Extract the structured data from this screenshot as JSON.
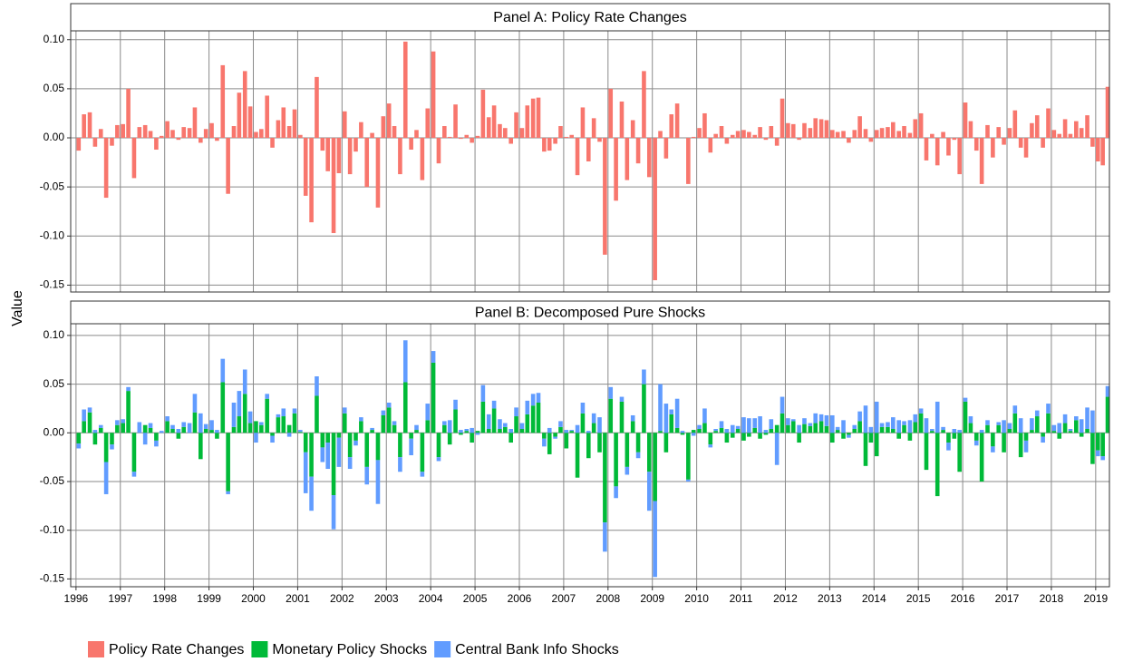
{
  "chart_data": [
    {
      "type": "bar",
      "title": "Panel A: Policy Rate Changes",
      "y_label": "Value",
      "x": [
        1996.06,
        1996.18,
        1996.31,
        1996.43,
        1996.56,
        1996.68,
        1996.81,
        1996.93,
        1997.06,
        1997.18,
        1997.31,
        1997.43,
        1997.56,
        1997.68,
        1997.81,
        1997.93,
        1998.06,
        1998.18,
        1998.31,
        1998.43,
        1998.56,
        1998.68,
        1998.81,
        1998.93,
        1999.06,
        1999.18,
        1999.31,
        1999.43,
        1999.56,
        1999.68,
        1999.81,
        1999.93,
        2000.06,
        2000.18,
        2000.31,
        2000.43,
        2000.56,
        2000.68,
        2000.81,
        2000.93,
        2001.06,
        2001.18,
        2001.31,
        2001.43,
        2001.56,
        2001.68,
        2001.81,
        2001.93,
        2002.06,
        2002.18,
        2002.31,
        2002.43,
        2002.56,
        2002.68,
        2002.81,
        2002.93,
        2003.06,
        2003.18,
        2003.31,
        2003.43,
        2003.56,
        2003.68,
        2003.81,
        2003.93,
        2004.06,
        2004.18,
        2004.31,
        2004.43,
        2004.56,
        2004.68,
        2004.81,
        2004.93,
        2005.06,
        2005.18,
        2005.31,
        2005.43,
        2005.56,
        2005.68,
        2005.81,
        2005.93,
        2006.06,
        2006.18,
        2006.31,
        2006.43,
        2006.56,
        2006.68,
        2006.81,
        2006.93,
        2007.06,
        2007.18,
        2007.31,
        2007.43,
        2007.56,
        2007.68,
        2007.81,
        2007.93,
        2008.06,
        2008.18,
        2008.31,
        2008.43,
        2008.56,
        2008.68,
        2008.81,
        2008.93,
        2009.06,
        2009.18,
        2009.31,
        2009.43,
        2009.56,
        2009.68,
        2009.81,
        2009.93,
        2010.06,
        2010.18,
        2010.31,
        2010.43,
        2010.56,
        2010.68,
        2010.81,
        2010.93,
        2011.06,
        2011.18,
        2011.31,
        2011.43,
        2011.56,
        2011.68,
        2011.81,
        2011.93,
        2012.06,
        2012.18,
        2012.31,
        2012.43,
        2012.56,
        2012.68,
        2012.81,
        2012.93,
        2013.06,
        2013.18,
        2013.31,
        2013.43,
        2013.56,
        2013.68,
        2013.81,
        2013.93,
        2014.06,
        2014.18,
        2014.31,
        2014.43,
        2014.56,
        2014.68,
        2014.81,
        2014.93,
        2015.06,
        2015.18,
        2015.31,
        2015.43,
        2015.56,
        2015.68,
        2015.81,
        2015.93,
        2016.06,
        2016.18,
        2016.31,
        2016.43,
        2016.56,
        2016.68,
        2016.81,
        2016.93,
        2017.06,
        2017.18,
        2017.31,
        2017.43,
        2017.56,
        2017.68,
        2017.81,
        2017.93,
        2018.06,
        2018.18,
        2018.31,
        2018.43,
        2018.56,
        2018.68,
        2018.81,
        2018.93,
        2019.05,
        2019.16,
        2019.27
      ],
      "series": [
        {
          "name": "Policy Rate Changes",
          "color": "#F8766D",
          "values": [
            -0.013,
            0.024,
            0.026,
            -0.009,
            0.009,
            -0.061,
            -0.008,
            0.013,
            0.014,
            0.05,
            -0.041,
            0.011,
            0.013,
            0.007,
            -0.012,
            0.002,
            0.017,
            0.008,
            -0.002,
            0.011,
            0.01,
            0.031,
            -0.005,
            0.009,
            0.015,
            -0.003,
            0.074,
            -0.057,
            0.012,
            0.046,
            0.068,
            0.032,
            0.006,
            0.009,
            0.043,
            -0.01,
            0.018,
            0.031,
            0.012,
            0.029,
            0.003,
            -0.059,
            -0.086,
            0.062,
            -0.013,
            -0.034,
            -0.097,
            -0.036,
            0.027,
            -0.037,
            -0.014,
            0.016,
            -0.05,
            0.005,
            -0.071,
            0.022,
            0.035,
            0.012,
            -0.037,
            0.098,
            -0.012,
            0.008,
            -0.043,
            0.03,
            0.088,
            -0.026,
            0.012,
            0.001,
            0.034,
            -0.001,
            0.003,
            -0.005,
            0.002,
            0.049,
            0.021,
            0.033,
            0.014,
            0.01,
            -0.006,
            0.026,
            0.01,
            0.033,
            0.04,
            0.041,
            -0.014,
            -0.013,
            -0.006,
            0.012,
            0.001,
            0.003,
            -0.038,
            0.031,
            -0.024,
            0.02,
            -0.004,
            -0.119,
            0.05,
            -0.064,
            0.037,
            -0.043,
            0.018,
            -0.026,
            0.068,
            -0.04,
            -0.145,
            0.007,
            -0.021,
            0.024,
            0.035,
            0.0,
            -0.047,
            0.001,
            0.01,
            0.025,
            -0.015,
            0.004,
            0.012,
            -0.006,
            0.003,
            0.007,
            0.008,
            0.006,
            0.003,
            0.011,
            -0.002,
            0.012,
            -0.008,
            0.04,
            0.015,
            0.014,
            -0.002,
            0.015,
            0.01,
            0.02,
            0.019,
            0.018,
            0.008,
            0.006,
            0.007,
            -0.005,
            0.008,
            0.022,
            0.009,
            -0.004,
            0.008,
            0.01,
            0.011,
            0.016,
            0.007,
            0.012,
            0.005,
            0.019,
            0.025,
            -0.023,
            0.004,
            -0.028,
            0.006,
            -0.018,
            -0.002,
            -0.037,
            0.036,
            0.017,
            -0.013,
            -0.047,
            0.013,
            -0.02,
            0.011,
            -0.007,
            0.01,
            0.028,
            -0.01,
            -0.02,
            0.015,
            0.023,
            -0.01,
            0.03,
            0.008,
            0.004,
            0.019,
            0.004,
            0.017,
            0.01,
            0.023,
            -0.009,
            -0.024,
            -0.028,
            0.052
          ]
        }
      ],
      "xlim": [
        1995.88,
        2019.31
      ],
      "xticks": [
        1996,
        1997,
        1998,
        1999,
        2000,
        2001,
        2002,
        2003,
        2004,
        2005,
        2006,
        2007,
        2008,
        2009,
        2010,
        2011,
        2012,
        2013,
        2014,
        2015,
        2016,
        2017,
        2018,
        2019
      ],
      "ylim": [
        -0.157,
        0.109
      ],
      "yticks": [
        -0.15,
        {
          "value": -0.1,
          "label": "-0.10"
        },
        -0.05,
        {
          "value": 0,
          "label": "0.00"
        },
        0.05,
        {
          "value": 0.1,
          "label": "0.10"
        }
      ],
      "grid": true
    },
    {
      "type": "stacked_bar",
      "title": "Panel B: Decomposed Pure Shocks",
      "x": [
        1996.06,
        1996.18,
        1996.31,
        1996.43,
        1996.56,
        1996.68,
        1996.81,
        1996.93,
        1997.06,
        1997.18,
        1997.31,
        1997.43,
        1997.56,
        1997.68,
        1997.81,
        1997.93,
        1998.06,
        1998.18,
        1998.31,
        1998.43,
        1998.56,
        1998.68,
        1998.81,
        1998.93,
        1999.06,
        1999.18,
        1999.31,
        1999.43,
        1999.56,
        1999.68,
        1999.81,
        1999.93,
        2000.06,
        2000.18,
        2000.31,
        2000.43,
        2000.56,
        2000.68,
        2000.81,
        2000.93,
        2001.06,
        2001.18,
        2001.31,
        2001.43,
        2001.56,
        2001.68,
        2001.81,
        2001.93,
        2002.06,
        2002.18,
        2002.31,
        2002.43,
        2002.56,
        2002.68,
        2002.81,
        2002.93,
        2003.06,
        2003.18,
        2003.31,
        2003.43,
        2003.56,
        2003.68,
        2003.81,
        2003.93,
        2004.06,
        2004.18,
        2004.31,
        2004.43,
        2004.56,
        2004.68,
        2004.81,
        2004.93,
        2005.06,
        2005.18,
        2005.31,
        2005.43,
        2005.56,
        2005.68,
        2005.81,
        2005.93,
        2006.06,
        2006.18,
        2006.31,
        2006.43,
        2006.56,
        2006.68,
        2006.81,
        2006.93,
        2007.06,
        2007.18,
        2007.31,
        2007.43,
        2007.56,
        2007.68,
        2007.81,
        2007.93,
        2008.06,
        2008.18,
        2008.31,
        2008.43,
        2008.56,
        2008.68,
        2008.81,
        2008.93,
        2009.06,
        2009.18,
        2009.31,
        2009.43,
        2009.56,
        2009.68,
        2009.81,
        2009.93,
        2010.06,
        2010.18,
        2010.31,
        2010.43,
        2010.56,
        2010.68,
        2010.81,
        2010.93,
        2011.06,
        2011.18,
        2011.31,
        2011.43,
        2011.56,
        2011.68,
        2011.81,
        2011.93,
        2012.06,
        2012.18,
        2012.31,
        2012.43,
        2012.56,
        2012.68,
        2012.81,
        2012.93,
        2013.06,
        2013.18,
        2013.31,
        2013.43,
        2013.56,
        2013.68,
        2013.81,
        2013.93,
        2014.06,
        2014.18,
        2014.31,
        2014.43,
        2014.56,
        2014.68,
        2014.81,
        2014.93,
        2015.06,
        2015.18,
        2015.31,
        2015.43,
        2015.56,
        2015.68,
        2015.81,
        2015.93,
        2016.06,
        2016.18,
        2016.31,
        2016.43,
        2016.56,
        2016.68,
        2016.81,
        2016.93,
        2017.06,
        2017.18,
        2017.31,
        2017.43,
        2017.56,
        2017.68,
        2017.81,
        2017.93,
        2018.06,
        2018.18,
        2018.31,
        2018.43,
        2018.56,
        2018.68,
        2018.81,
        2018.93,
        2019.05,
        2019.16,
        2019.27
      ],
      "series": [
        {
          "name": "Monetary Policy Shocks",
          "color": "#00BA38",
          "values": [
            -0.011,
            0.012,
            0.021,
            -0.012,
            0.005,
            -0.03,
            -0.012,
            0.008,
            0.01,
            0.043,
            -0.04,
            0.0,
            0.008,
            0.005,
            -0.008,
            0.0,
            0.012,
            0.004,
            -0.006,
            0.006,
            0.0,
            0.021,
            -0.027,
            0.004,
            0.003,
            -0.006,
            0.052,
            -0.06,
            0.006,
            0.017,
            0.04,
            0.01,
            0.012,
            0.008,
            0.035,
            -0.003,
            0.016,
            0.017,
            0.008,
            0.02,
            0.001,
            -0.02,
            -0.045,
            0.038,
            -0.015,
            -0.01,
            -0.064,
            -0.005,
            0.02,
            -0.025,
            -0.008,
            0.012,
            -0.035,
            0.003,
            -0.028,
            0.018,
            0.026,
            0.008,
            -0.025,
            0.052,
            -0.006,
            0.003,
            -0.04,
            0.013,
            0.072,
            -0.025,
            0.008,
            -0.012,
            0.024,
            -0.002,
            0.002,
            -0.01,
            0.002,
            0.032,
            0.004,
            0.025,
            0.004,
            0.006,
            -0.01,
            0.017,
            0.004,
            0.019,
            0.028,
            0.031,
            -0.006,
            -0.022,
            -0.004,
            0.006,
            -0.016,
            0.002,
            -0.046,
            0.02,
            -0.026,
            0.01,
            -0.02,
            -0.092,
            0.035,
            -0.055,
            0.032,
            -0.035,
            0.012,
            -0.02,
            0.05,
            -0.04,
            -0.07,
            0.002,
            -0.02,
            0.019,
            0.005,
            -0.002,
            -0.048,
            0.003,
            0.004,
            0.01,
            -0.012,
            0.002,
            0.005,
            -0.01,
            -0.005,
            0.004,
            -0.008,
            -0.004,
            0.005,
            -0.006,
            -0.002,
            0.004,
            0.008,
            0.02,
            0.008,
            0.012,
            -0.01,
            0.009,
            0.007,
            0.01,
            0.012,
            0.007,
            -0.01,
            0.003,
            -0.006,
            -0.002,
            0.004,
            0.012,
            -0.034,
            -0.01,
            -0.024,
            0.006,
            0.006,
            0.004,
            -0.006,
            0.008,
            -0.008,
            0.011,
            0.02,
            -0.038,
            0.002,
            -0.065,
            0.003,
            -0.01,
            -0.006,
            -0.04,
            0.032,
            0.01,
            -0.008,
            -0.05,
            0.008,
            -0.014,
            0.008,
            -0.02,
            0.004,
            0.02,
            -0.025,
            -0.008,
            0.003,
            0.017,
            -0.004,
            0.02,
            0.002,
            -0.006,
            0.01,
            0.002,
            0.013,
            -0.004,
            0.004,
            -0.032,
            -0.018,
            -0.024,
            0.037
          ]
        },
        {
          "name": "Central Bank Info Shocks",
          "color": "#619CFF",
          "values": [
            -0.005,
            0.012,
            0.005,
            0.003,
            0.003,
            -0.033,
            -0.005,
            0.005,
            0.004,
            0.004,
            -0.005,
            0.011,
            -0.012,
            0.005,
            -0.006,
            0.002,
            0.005,
            0.004,
            0.004,
            0.005,
            0.01,
            0.019,
            0.02,
            0.005,
            0.01,
            0.003,
            0.024,
            -0.003,
            0.025,
            0.026,
            0.025,
            0.012,
            -0.01,
            0.003,
            0.005,
            -0.007,
            0.003,
            0.008,
            -0.004,
            0.005,
            0.002,
            -0.042,
            -0.035,
            0.02,
            -0.015,
            -0.027,
            -0.035,
            -0.03,
            0.006,
            -0.012,
            -0.005,
            0.004,
            -0.018,
            0.002,
            -0.045,
            0.005,
            0.005,
            0.004,
            -0.015,
            0.043,
            -0.017,
            0.005,
            -0.005,
            0.017,
            0.012,
            -0.004,
            0.004,
            0.013,
            0.01,
            0.003,
            0.002,
            0.005,
            -0.002,
            0.017,
            0.015,
            0.008,
            0.01,
            0.004,
            0.004,
            0.009,
            0.006,
            0.014,
            0.012,
            0.01,
            -0.008,
            0.005,
            -0.002,
            0.006,
            0.003,
            0.001,
            0.008,
            0.011,
            0.002,
            0.01,
            0.016,
            -0.03,
            0.012,
            -0.012,
            0.005,
            -0.008,
            0.006,
            -0.006,
            0.015,
            -0.04,
            -0.078,
            0.048,
            0.03,
            0.005,
            0.03,
            0.002,
            -0.002,
            -0.003,
            0.004,
            0.015,
            -0.003,
            0.002,
            0.007,
            0.004,
            0.008,
            0.003,
            0.016,
            0.015,
            0.01,
            0.017,
            0.003,
            0.01,
            -0.033,
            0.017,
            0.007,
            0.002,
            0.008,
            0.006,
            0.003,
            0.01,
            0.007,
            0.011,
            0.018,
            0.003,
            0.013,
            -0.003,
            0.004,
            0.01,
            0.028,
            0.006,
            0.032,
            0.004,
            0.005,
            0.012,
            0.013,
            0.004,
            0.013,
            0.008,
            0.005,
            0.015,
            0.002,
            0.032,
            0.003,
            -0.008,
            0.004,
            0.003,
            0.004,
            0.007,
            -0.005,
            0.003,
            0.005,
            -0.006,
            0.003,
            0.013,
            0.006,
            0.008,
            0.015,
            -0.012,
            0.012,
            0.006,
            -0.006,
            0.01,
            0.006,
            0.01,
            0.009,
            0.002,
            0.004,
            0.014,
            0.022,
            0.023,
            -0.006,
            -0.004,
            0.011
          ]
        }
      ],
      "xlim": [
        1995.88,
        2019.31
      ],
      "xticks": [
        1996,
        1997,
        1998,
        1999,
        2000,
        2001,
        2002,
        2003,
        2004,
        2005,
        2006,
        2007,
        2008,
        2009,
        2010,
        2011,
        2012,
        2013,
        2014,
        2015,
        2016,
        2017,
        2018,
        2019
      ],
      "ylim": [
        -0.158,
        0.112
      ],
      "yticks": [
        -0.15,
        {
          "value": -0.1,
          "label": "-0.10"
        },
        -0.05,
        {
          "value": 0,
          "label": "0.00"
        },
        0.05,
        {
          "value": 0.1,
          "label": "0.10"
        }
      ],
      "grid": true
    }
  ]
}
